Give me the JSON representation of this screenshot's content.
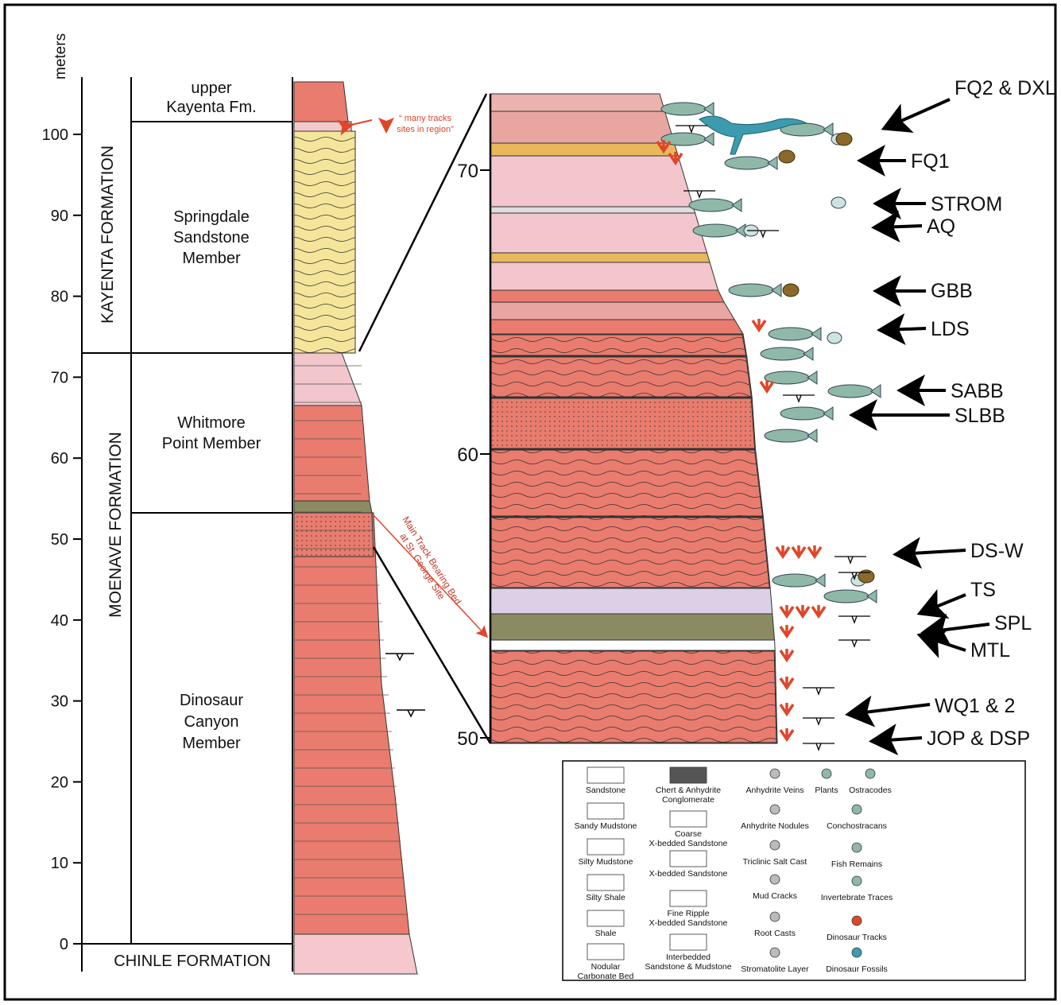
{
  "scale": {
    "label": "meters",
    "ticks": [
      0,
      10,
      20,
      30,
      40,
      50,
      60,
      70,
      80,
      90,
      100
    ]
  },
  "formations": [
    "KAYENTA FORMATION",
    "MOENAVE FORMATION",
    "CHINLE FORMATION"
  ],
  "members": [
    {
      "lines": [
        "upper",
        "Kayenta Fm."
      ]
    },
    {
      "lines": [
        "Springdale",
        "Sandstone",
        "Member"
      ]
    },
    {
      "lines": [
        "Whitmore",
        "Point Member"
      ]
    },
    {
      "lines": [
        "Dinosaur",
        "Canyon",
        "Member"
      ]
    }
  ],
  "annotations": [
    {
      "lines": [
        "“ many tracks",
        "sites in region”"
      ]
    },
    {
      "lines": [
        "Main Track Bearing Bed",
        "at St. George Site"
      ]
    }
  ],
  "detail_ticks": [
    50,
    60,
    70
  ],
  "sites": [
    "FQ2 & DXL",
    "FQ1",
    "STROM",
    "AQ",
    "GBB",
    "LDS",
    "SABB",
    "SLBB",
    "DS-W",
    "TS",
    "SPL",
    "MTL",
    "WQ1 & 2",
    "JOP & DSP"
  ],
  "legend": [
    {
      "lines": [
        "Sandstone"
      ]
    },
    {
      "lines": [
        "Sandy Mudstone"
      ]
    },
    {
      "lines": [
        "Silty Mudstone"
      ]
    },
    {
      "lines": [
        "Silty Shale"
      ]
    },
    {
      "lines": [
        "Shale"
      ]
    },
    {
      "lines": [
        "Nodular",
        "Carbonate Bed"
      ]
    },
    {
      "lines": [
        "Chert & Anhydrite",
        "Conglomerate"
      ]
    },
    {
      "lines": [
        "Coarse",
        "X-bedded Sandstone"
      ]
    },
    {
      "lines": [
        "X-bedded Sandstone"
      ]
    },
    {
      "lines": [
        "Fine Ripple",
        "X-bedded Sandstone"
      ]
    },
    {
      "lines": [
        "Interbedded",
        "Sandstone & Mudstone"
      ]
    },
    {
      "lines": [
        "Anhydrite Veins"
      ]
    },
    {
      "lines": [
        "Anhydrite Nodules"
      ]
    },
    {
      "lines": [
        "Triclinic Salt Cast"
      ]
    },
    {
      "lines": [
        "Mud Cracks"
      ]
    },
    {
      "lines": [
        "Root Casts"
      ]
    },
    {
      "lines": [
        "Stromatolite Layer"
      ]
    },
    {
      "lines": [
        "Plants"
      ]
    },
    {
      "lines": [
        "Ostracodes"
      ]
    },
    {
      "lines": [
        "Conchostracans"
      ]
    },
    {
      "lines": [
        "Fish Remains"
      ]
    },
    {
      "lines": [
        "Invertebrate Traces"
      ]
    },
    {
      "lines": [
        "Dinosaur Tracks"
      ]
    },
    {
      "lines": [
        "Dinosaur Fossils"
      ]
    }
  ]
}
